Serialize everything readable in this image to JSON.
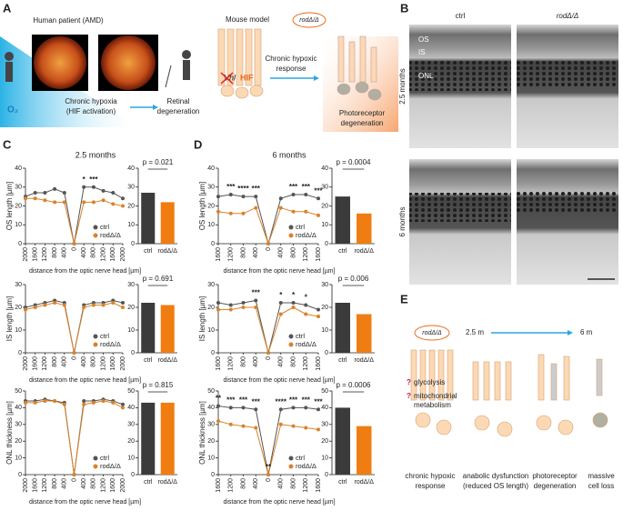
{
  "figure": {
    "letters": [
      "A",
      "B",
      "C",
      "D",
      "E"
    ],
    "A": {
      "patient": "Human patient (AMD)",
      "o2": "O₂",
      "hypoxia": [
        "Chronic hypoxia",
        "(HIF activation)"
      ],
      "retinal": [
        "Retinal",
        "degeneration"
      ],
      "mouse": "Mouse model",
      "mouse_label": "rodΔ/Δ",
      "vhl": "Vhl",
      "hif": "HIF",
      "response": [
        "Chronic hypoxic",
        "response"
      ],
      "degeneration": [
        "Photoreceptor",
        "degeneration"
      ]
    },
    "B": {
      "ctrl": "ctrl",
      "rod": "rodΔ/Δ",
      "layers": [
        "OS",
        "IS",
        "ONL"
      ],
      "rows": [
        "2.5 months",
        "6 months"
      ]
    },
    "C": {
      "title": "2.5 months"
    },
    "D": {
      "title": "6 months"
    },
    "E": {
      "mouse_label": "rodΔ/Δ",
      "start": "2.5 m",
      "end": "6 m",
      "q": "?",
      "glycolysis": "glycolysis",
      "mito": [
        "mitochondrial",
        "metabolism"
      ],
      "stages": [
        [
          "chronic hypoxic",
          "response"
        ],
        [
          "anabolic dysfunction",
          "(reduced OS length)"
        ],
        [
          "photoreceptor",
          "degeneration"
        ],
        [
          "massive",
          "cell loss"
        ]
      ]
    }
  },
  "chart_data": [
    {
      "type": "line",
      "ylabel": "OS length [µm]",
      "xlabel": "distance from the optic nerve head [µm]",
      "categories": [
        "2000",
        "1600",
        "1200",
        "800",
        "400",
        "0",
        "400",
        "800",
        "1200",
        "1600",
        "2000"
      ],
      "series": [
        {
          "name": "ctrl",
          "color": "#555555",
          "values": [
            25,
            27,
            27,
            29,
            27,
            0,
            30,
            30,
            28,
            27,
            24
          ]
        },
        {
          "name": "rodΔ/Δ",
          "color": "#d9822b",
          "values": [
            24,
            24,
            23,
            22,
            22,
            0,
            22,
            22,
            23,
            21,
            20
          ]
        }
      ],
      "significance": [
        null,
        null,
        null,
        null,
        null,
        null,
        "*",
        "***",
        null,
        null,
        null
      ],
      "ylim": [
        0,
        40
      ],
      "yticks": [
        0,
        10,
        20,
        30,
        40
      ],
      "legend": "lower right"
    },
    {
      "type": "bar",
      "categories": [
        "ctrl",
        "rodΔ/Δ"
      ],
      "values": [
        27,
        22
      ],
      "colors": [
        "#3b3b3b",
        "#f07d12"
      ],
      "annotation": "p = 0.021",
      "ylim": [
        0,
        40
      ],
      "yticks": [
        0,
        10,
        20,
        30,
        40
      ]
    },
    {
      "type": "line",
      "ylabel": "IS length [µm]",
      "xlabel": "distance from the optic nerve head [µm]",
      "categories": [
        "2000",
        "1600",
        "1200",
        "800",
        "400",
        "0",
        "400",
        "800",
        "1200",
        "1600",
        "2000"
      ],
      "series": [
        {
          "name": "ctrl",
          "color": "#555555",
          "values": [
            20,
            21,
            22,
            23,
            22,
            0,
            21,
            22,
            22,
            23,
            22
          ]
        },
        {
          "name": "rodΔ/Δ",
          "color": "#d9822b",
          "values": [
            19,
            20,
            21,
            22,
            21,
            0,
            20,
            21,
            21,
            22,
            20
          ]
        }
      ],
      "significance": [
        null,
        null,
        null,
        null,
        null,
        null,
        null,
        null,
        null,
        null,
        null
      ],
      "ylim": [
        0,
        30
      ],
      "yticks": [
        0,
        10,
        20,
        30
      ],
      "legend": "lower right"
    },
    {
      "type": "bar",
      "categories": [
        "ctrl",
        "rodΔ/Δ"
      ],
      "values": [
        22,
        21
      ],
      "colors": [
        "#3b3b3b",
        "#f07d12"
      ],
      "annotation": "p = 0.691",
      "ylim": [
        0,
        30
      ],
      "yticks": [
        0,
        10,
        20,
        30
      ]
    },
    {
      "type": "line",
      "ylabel": "ONL thickness [µm]",
      "xlabel": "distance from the optic nerve head [µm]",
      "categories": [
        "2000",
        "1600",
        "1200",
        "800",
        "400",
        "0",
        "400",
        "800",
        "1200",
        "1600",
        "2000"
      ],
      "series": [
        {
          "name": "ctrl",
          "color": "#555555",
          "values": [
            44,
            44,
            45,
            44,
            43,
            0,
            44,
            44,
            45,
            44,
            42
          ]
        },
        {
          "name": "rodΔ/Δ",
          "color": "#d9822b",
          "values": [
            43,
            43,
            44,
            44,
            42,
            0,
            42,
            43,
            44,
            43,
            40
          ]
        }
      ],
      "significance": [
        null,
        null,
        null,
        null,
        null,
        null,
        null,
        null,
        null,
        null,
        null
      ],
      "ylim": [
        0,
        50
      ],
      "yticks": [
        0,
        10,
        20,
        30,
        40,
        50
      ],
      "legend": "lower right"
    },
    {
      "type": "bar",
      "categories": [
        "ctrl",
        "rodΔ/Δ"
      ],
      "values": [
        43,
        43
      ],
      "colors": [
        "#3b3b3b",
        "#f07d12"
      ],
      "annotation": "p = 0.815",
      "ylim": [
        0,
        50
      ],
      "yticks": [
        0,
        10,
        20,
        30,
        40,
        50
      ]
    },
    {
      "type": "line",
      "ylabel": "OS length [µm]",
      "xlabel": "distance from the optic nerve head [µm]",
      "categories": [
        "1600",
        "1200",
        "800",
        "400",
        "0",
        "400",
        "800",
        "1200",
        "1600"
      ],
      "series": [
        {
          "name": "ctrl",
          "color": "#555555",
          "values": [
            25,
            26,
            25,
            25,
            0,
            24,
            26,
            26,
            24
          ]
        },
        {
          "name": "rodΔ/Δ",
          "color": "#d9822b",
          "values": [
            17,
            16,
            16,
            19,
            0,
            19,
            17,
            17,
            15
          ]
        }
      ],
      "significance": [
        null,
        "***",
        "****",
        "***",
        null,
        null,
        "***",
        "***",
        "***"
      ],
      "ylim": [
        0,
        40
      ],
      "yticks": [
        0,
        10,
        20,
        30,
        40
      ],
      "legend": "lower right"
    },
    {
      "type": "bar",
      "categories": [
        "ctrl",
        "rodΔ/Δ"
      ],
      "values": [
        25,
        16
      ],
      "colors": [
        "#3b3b3b",
        "#f07d12"
      ],
      "annotation": "p = 0.0004",
      "ylim": [
        0,
        40
      ],
      "yticks": [
        0,
        10,
        20,
        30,
        40
      ]
    },
    {
      "type": "line",
      "ylabel": "IS length [µm]",
      "xlabel": "distance from the optic nerve head [µm]",
      "categories": [
        "1600",
        "1200",
        "800",
        "400",
        "0",
        "400",
        "800",
        "1200",
        "1600"
      ],
      "series": [
        {
          "name": "ctrl",
          "color": "#555555",
          "values": [
            22,
            21,
            22,
            23,
            0,
            22,
            22,
            21,
            19
          ]
        },
        {
          "name": "rodΔ/Δ",
          "color": "#d9822b",
          "values": [
            19,
            19,
            20,
            20,
            0,
            17,
            20,
            17,
            16
          ]
        }
      ],
      "significance": [
        null,
        null,
        null,
        "***",
        null,
        "*",
        "*",
        "*",
        null
      ],
      "ylim": [
        0,
        30
      ],
      "yticks": [
        0,
        10,
        20,
        30
      ],
      "legend": "lower right"
    },
    {
      "type": "bar",
      "categories": [
        "ctrl",
        "rodΔ/Δ"
      ],
      "values": [
        22,
        17
      ],
      "colors": [
        "#3b3b3b",
        "#f07d12"
      ],
      "annotation": "p = 0.006",
      "ylim": [
        0,
        30
      ],
      "yticks": [
        0,
        10,
        20,
        30
      ]
    },
    {
      "type": "line",
      "ylabel": "ONL thickness [µm]",
      "xlabel": "distance from the optic nerve head [µm]",
      "categories": [
        "1600",
        "1200",
        "800",
        "400",
        "0",
        "400",
        "800",
        "1200",
        "1600"
      ],
      "series": [
        {
          "name": "ctrl",
          "color": "#555555",
          "values": [
            41,
            40,
            40,
            39,
            0,
            39,
            40,
            40,
            39
          ]
        },
        {
          "name": "rodΔ/Δ",
          "color": "#d9822b",
          "values": [
            32,
            30,
            29,
            28,
            0,
            30,
            29,
            28,
            27
          ]
        }
      ],
      "significance": [
        "**",
        "***",
        "***",
        "***",
        "**",
        "****",
        "***",
        "***",
        "***"
      ],
      "ylim": [
        0,
        50
      ],
      "yticks": [
        0,
        10,
        20,
        30,
        40,
        50
      ],
      "legend": "lower right"
    },
    {
      "type": "bar",
      "categories": [
        "ctrl",
        "rodΔ/Δ"
      ],
      "values": [
        40,
        29
      ],
      "colors": [
        "#3b3b3b",
        "#f07d12"
      ],
      "annotation": "p = 0.0006",
      "ylim": [
        0,
        50
      ],
      "yticks": [
        0,
        10,
        20,
        30,
        40,
        50
      ]
    }
  ]
}
